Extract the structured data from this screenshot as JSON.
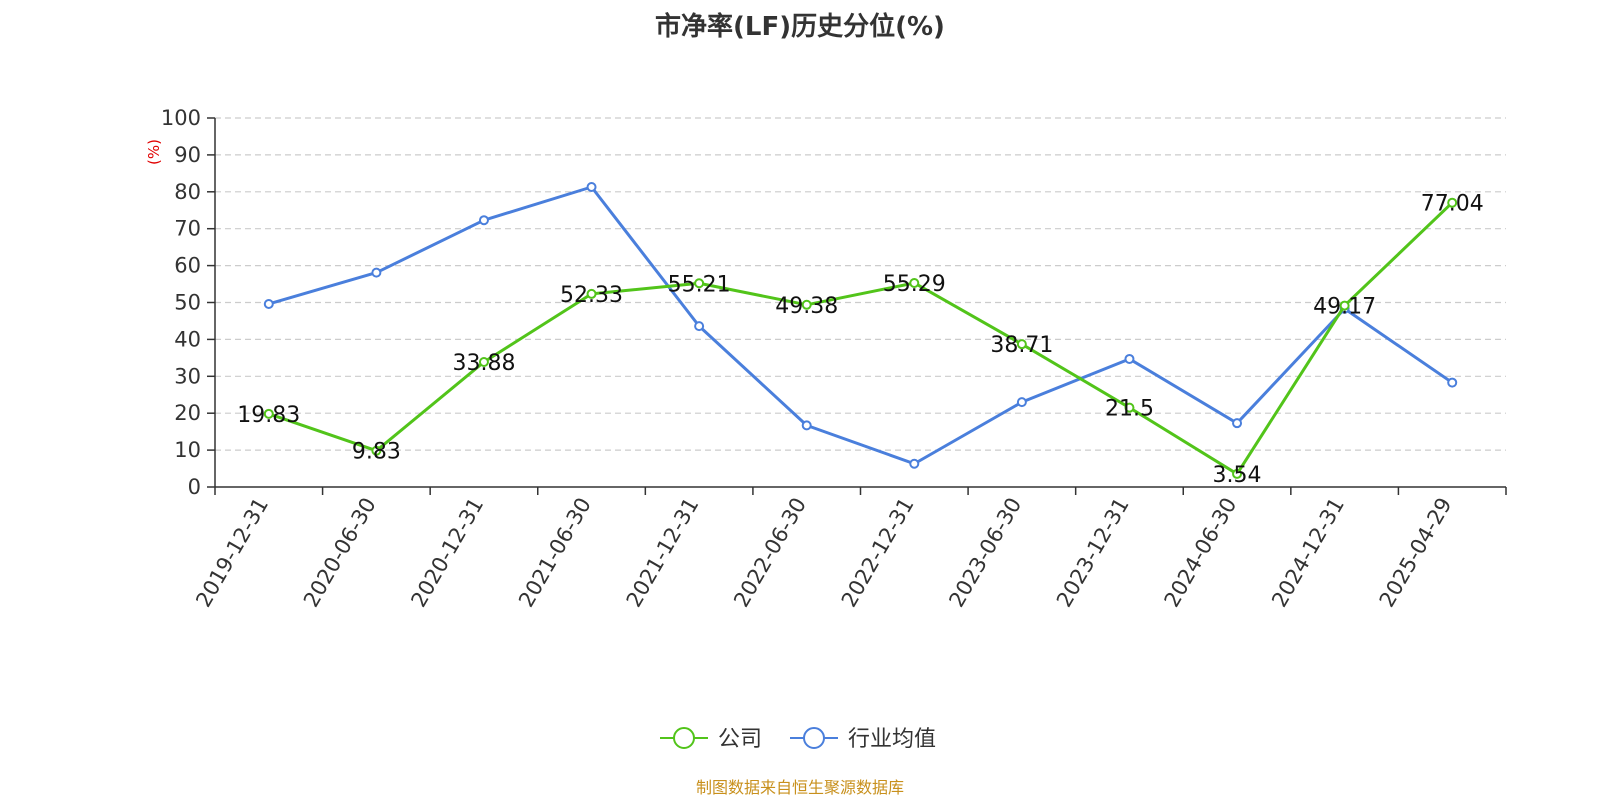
{
  "chart_data": {
    "type": "line",
    "title": "市净率(LF)历史分位(%)",
    "ylabel": "(%)",
    "xlabel": "",
    "categories": [
      "2019-12-31",
      "2020-06-30",
      "2020-12-31",
      "2021-06-30",
      "2021-12-31",
      "2022-06-30",
      "2022-12-31",
      "2023-06-30",
      "2023-12-31",
      "2024-06-30",
      "2024-12-31",
      "2025-04-29"
    ],
    "ylim": [
      0,
      100
    ],
    "yticks": [
      0,
      10,
      20,
      30,
      40,
      50,
      60,
      70,
      80,
      90,
      100
    ],
    "grid": "horizontal dashed",
    "legend_position": "bottom-center",
    "series": [
      {
        "name": "公司",
        "color": "#52c41a",
        "values": [
          19.83,
          9.83,
          33.88,
          52.33,
          55.21,
          49.38,
          55.29,
          38.71,
          21.5,
          3.54,
          49.17,
          77.04
        ],
        "labels": [
          "19.83",
          "9.83",
          "33.88",
          "52.33",
          "55.21",
          "49.38",
          "55.29",
          "38.71",
          "21.5",
          "3.54",
          "49.17",
          "77.04"
        ]
      },
      {
        "name": "行业均值",
        "color": "#4a7fdc",
        "values": [
          49.6,
          58.1,
          72.3,
          81.3,
          43.6,
          16.7,
          6.3,
          23.0,
          34.7,
          17.3,
          48.3,
          28.3
        ]
      }
    ]
  },
  "source_note": "制图数据来自恒生聚源数据库",
  "colors": {
    "axis": "#333333",
    "grid": "#cccccc",
    "ylabel": "#e00000",
    "source": "#c8901c",
    "text": "#333333"
  }
}
